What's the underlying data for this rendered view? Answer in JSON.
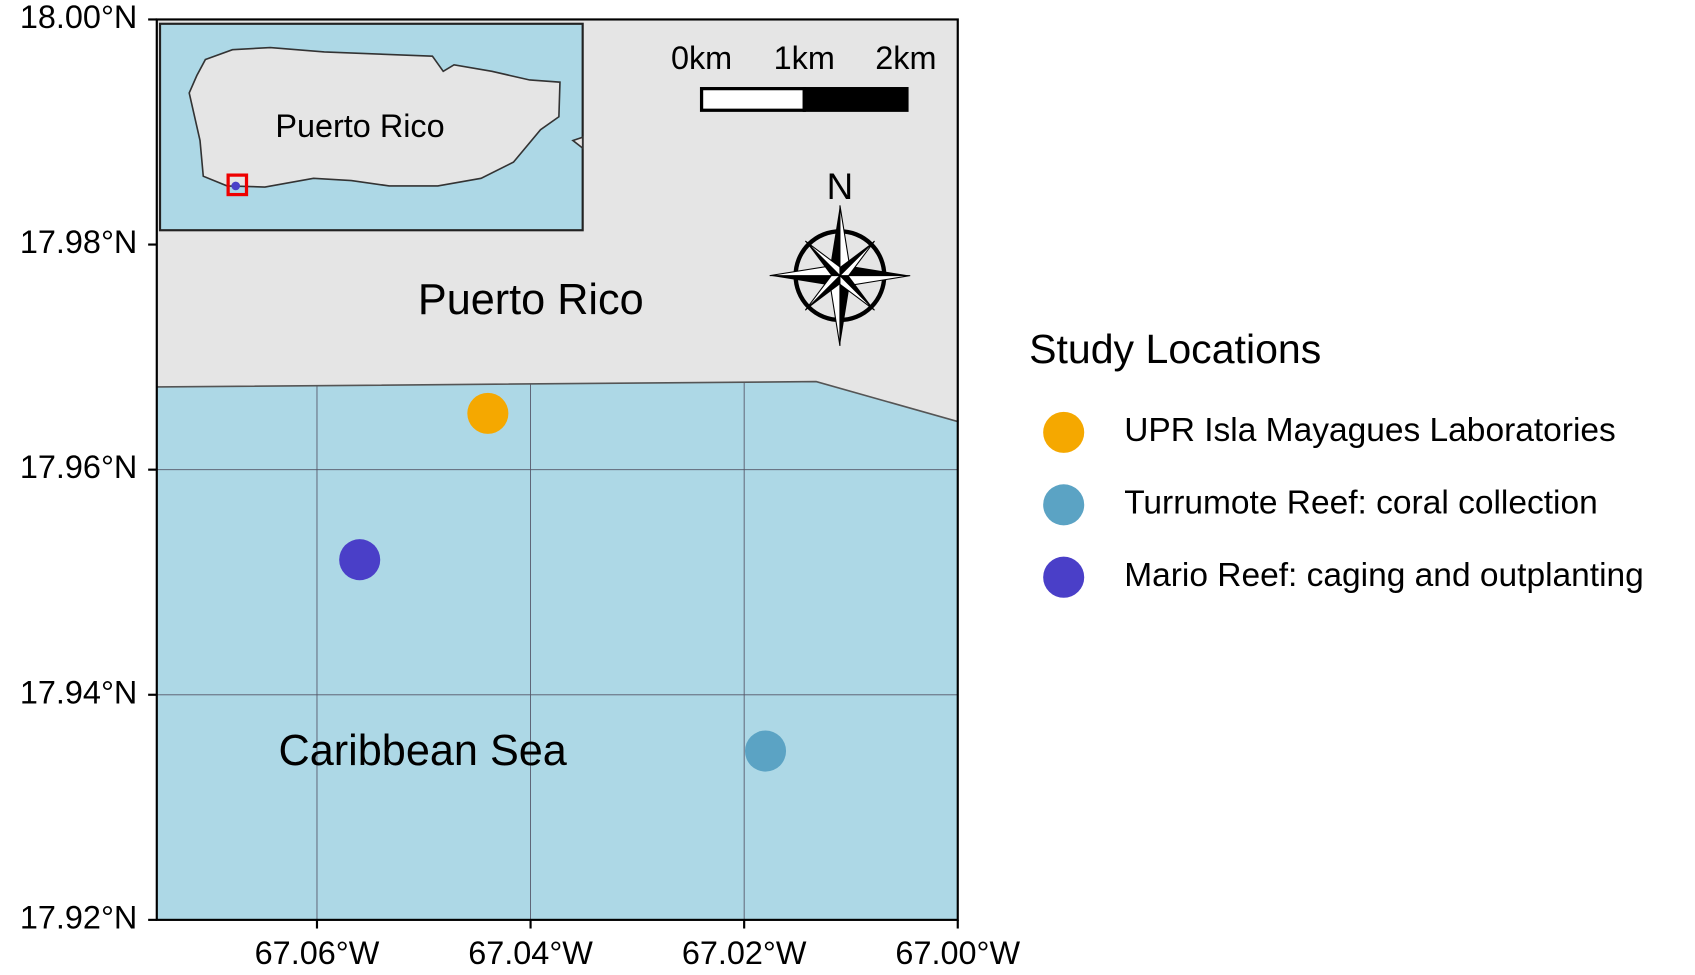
{
  "chart_data": {
    "type": "scatter",
    "xlim": [
      -67.075,
      -67.0
    ],
    "ylim": [
      17.92,
      18.0
    ],
    "xticks": [
      {
        "value": -67.06,
        "label": "67.06°W"
      },
      {
        "value": -67.04,
        "label": "67.04°W"
      },
      {
        "value": -67.02,
        "label": "67.02°W"
      },
      {
        "value": -67.0,
        "label": "67.00°W"
      }
    ],
    "yticks": [
      {
        "value": 17.92,
        "label": "17.92°N"
      },
      {
        "value": 17.94,
        "label": "17.94°N"
      },
      {
        "value": 17.96,
        "label": "17.96°N"
      },
      {
        "value": 17.98,
        "label": "17.98°N"
      },
      {
        "value": 18.0,
        "label": "18.00°N"
      }
    ],
    "grid": true,
    "legend_title": "Study Locations",
    "series": [
      {
        "name": "UPR Isla Mayagues Laboratories",
        "color": "#f5a800",
        "x": [
          -67.044
        ],
        "values": [
          17.965
        ]
      },
      {
        "name": "Turrumote Reef: coral collection",
        "color": "#5ba3c4",
        "x": [
          -67.018
        ],
        "values": [
          17.935
        ]
      },
      {
        "name": "Mario Reef: caging and outplanting",
        "color": "#4a3fc8",
        "x": [
          -67.056
        ],
        "values": [
          17.952
        ]
      }
    ],
    "annotations": {
      "land": "Puerto Rico",
      "sea": "Caribbean Sea",
      "inset": "Puerto Rico",
      "north": "N",
      "scale": [
        "0km",
        "1km",
        "2km"
      ]
    }
  }
}
